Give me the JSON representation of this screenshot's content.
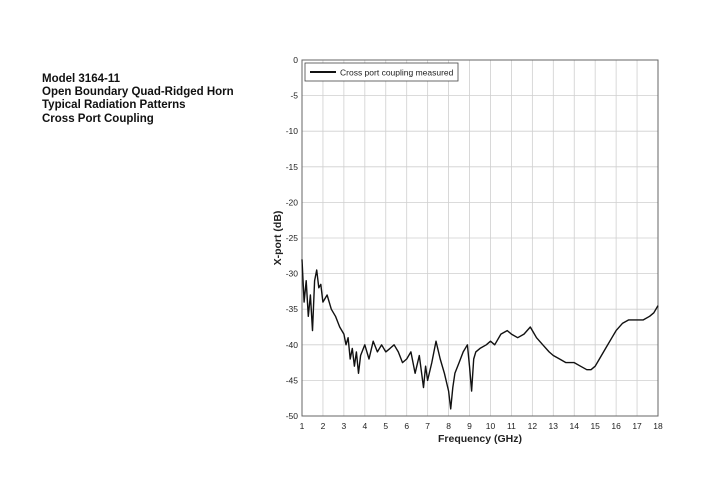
{
  "header": {
    "model": "Model 3164-11",
    "product": "Open Boundary Quad-Ridged Horn",
    "subtitle": "Typical Radiation Patterns",
    "chart_name": "Cross Port Coupling"
  },
  "chart_data": {
    "type": "line",
    "title": "",
    "xlabel": "Frequency (GHz)",
    "ylabel": "X-port (dB)",
    "xlim": [
      1,
      18
    ],
    "ylim": [
      -50,
      0
    ],
    "xticks": [
      1,
      2,
      3,
      4,
      5,
      6,
      7,
      8,
      9,
      10,
      11,
      12,
      13,
      14,
      15,
      16,
      17,
      18
    ],
    "yticks": [
      0,
      -5,
      -10,
      -15,
      -20,
      -25,
      -30,
      -35,
      -40,
      -45,
      -50
    ],
    "grid": true,
    "legend_position": "top-left",
    "line_color": "#111111",
    "series": [
      {
        "name": "Cross port coupling measured",
        "x": [
          1.0,
          1.1,
          1.2,
          1.3,
          1.4,
          1.5,
          1.6,
          1.7,
          1.8,
          1.9,
          2.0,
          2.2,
          2.4,
          2.6,
          2.8,
          3.0,
          3.1,
          3.2,
          3.3,
          3.4,
          3.5,
          3.6,
          3.7,
          3.8,
          4.0,
          4.2,
          4.4,
          4.6,
          4.8,
          5.0,
          5.2,
          5.4,
          5.6,
          5.8,
          6.0,
          6.2,
          6.4,
          6.6,
          6.8,
          6.9,
          7.0,
          7.2,
          7.4,
          7.6,
          7.8,
          8.0,
          8.1,
          8.2,
          8.3,
          8.5,
          8.7,
          8.9,
          9.0,
          9.1,
          9.2,
          9.3,
          9.5,
          9.8,
          10.0,
          10.2,
          10.5,
          10.8,
          11.0,
          11.3,
          11.6,
          11.9,
          12.0,
          12.2,
          12.5,
          12.8,
          13.0,
          13.3,
          13.6,
          14.0,
          14.3,
          14.6,
          14.8,
          15.0,
          15.2,
          15.5,
          15.8,
          16.0,
          16.3,
          16.6,
          17.0,
          17.3,
          17.6,
          17.8,
          18.0
        ],
        "y": [
          -28.0,
          -34.0,
          -31.0,
          -36.0,
          -33.0,
          -38.0,
          -31.0,
          -29.5,
          -32.0,
          -31.5,
          -34.0,
          -33.0,
          -35.0,
          -36.0,
          -37.5,
          -38.5,
          -40.0,
          -39.0,
          -42.0,
          -40.5,
          -43.0,
          -41.0,
          -44.0,
          -41.5,
          -40.0,
          -42.0,
          -39.5,
          -41.0,
          -40.0,
          -41.0,
          -40.5,
          -40.0,
          -41.0,
          -42.5,
          -42.0,
          -41.0,
          -44.0,
          -41.5,
          -46.0,
          -43.0,
          -45.0,
          -42.5,
          -39.5,
          -42.0,
          -44.0,
          -46.5,
          -49.0,
          -46.0,
          -44.0,
          -42.5,
          -41.0,
          -40.0,
          -43.0,
          -46.5,
          -42.0,
          -41.0,
          -40.5,
          -40.0,
          -39.5,
          -40.0,
          -38.5,
          -38.0,
          -38.5,
          -39.0,
          -38.5,
          -37.5,
          -38.0,
          -39.0,
          -40.0,
          -41.0,
          -41.5,
          -42.0,
          -42.5,
          -42.5,
          -43.0,
          -43.5,
          -43.5,
          -43.0,
          -42.0,
          -40.5,
          -39.0,
          -38.0,
          -37.0,
          -36.5,
          -36.5,
          -36.5,
          -36.0,
          -35.5,
          -34.5
        ]
      }
    ]
  }
}
